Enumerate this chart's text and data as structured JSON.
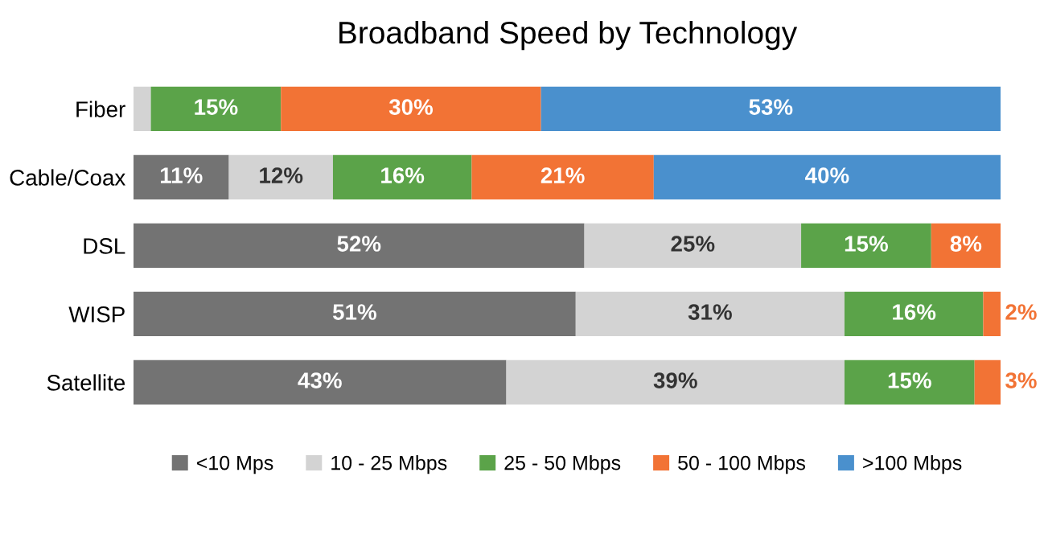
{
  "chart_data": {
    "type": "bar",
    "title": "Broadband Speed by Technology",
    "orientation": "horizontal",
    "stacked": true,
    "categories": [
      "Fiber",
      "Cable/Coax",
      "DSL",
      "WISP",
      "Satellite"
    ],
    "xlim": [
      0,
      100
    ],
    "grid": false,
    "legend": "bottom",
    "series": [
      {
        "name": "<10 Mps",
        "color": "#737373",
        "values": [
          0,
          11,
          52,
          51,
          43
        ],
        "value_labels": [
          null,
          "11%",
          "52%",
          "51%",
          "43%"
        ]
      },
      {
        "name": "10 - 25 Mbps",
        "color": "#d3d3d3",
        "values": [
          2,
          12,
          25,
          31,
          39
        ],
        "value_labels": [
          null,
          "12%",
          "25%",
          "31%",
          "39%"
        ]
      },
      {
        "name": "25 - 50 Mbps",
        "color": "#5ba349",
        "values": [
          15,
          16,
          15,
          16,
          15
        ],
        "value_labels": [
          "15%",
          "16%",
          "15%",
          "16%",
          "15%"
        ]
      },
      {
        "name": "50 - 100 Mbps",
        "color": "#f27335",
        "values": [
          30,
          21,
          8,
          2,
          3
        ],
        "value_labels": [
          "30%",
          "21%",
          "8%",
          "2%",
          "3%"
        ]
      },
      {
        "name": ">100 Mbps",
        "color": "#4a90cd",
        "values": [
          53,
          40,
          0,
          0,
          0
        ],
        "value_labels": [
          "53%",
          "40%",
          null,
          null,
          null
        ]
      }
    ]
  }
}
